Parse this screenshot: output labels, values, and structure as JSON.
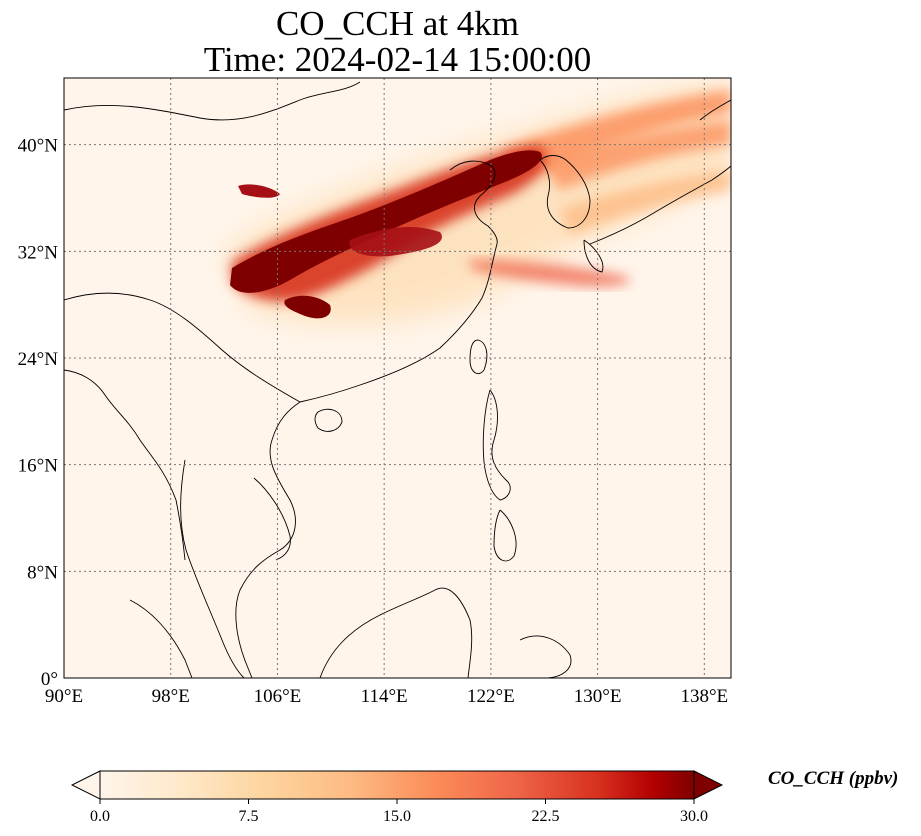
{
  "title": {
    "line1": "CO_CCH at 4km",
    "line2": "Time: 2024-02-14 15:00:00"
  },
  "map": {
    "lon_range": [
      90,
      140
    ],
    "lat_range": [
      0,
      45
    ],
    "lon_ticks": [
      {
        "value": 90,
        "label": "90°E"
      },
      {
        "value": 98,
        "label": "98°E"
      },
      {
        "value": 106,
        "label": "106°E"
      },
      {
        "value": 114,
        "label": "114°E"
      },
      {
        "value": 122,
        "label": "122°E"
      },
      {
        "value": 130,
        "label": "130°E"
      },
      {
        "value": 138,
        "label": "138°E"
      }
    ],
    "lat_ticks": [
      {
        "value": 0,
        "label": "0°"
      },
      {
        "value": 8,
        "label": "8°N"
      },
      {
        "value": 16,
        "label": "16°N"
      },
      {
        "value": 24,
        "label": "24°N"
      },
      {
        "value": 32,
        "label": "32°N"
      },
      {
        "value": 40,
        "label": "40°N"
      }
    ],
    "gridlines": true,
    "background_color": "#fff5eb",
    "coastline_color": "#000000",
    "colormap": "OrRd",
    "plume": {
      "description_values": "CO concentration field; core exceeds colorbar max",
      "max_value_ppbv": 30
    }
  },
  "colorbar": {
    "min": 0,
    "max": 30,
    "ticks": [
      "0.0",
      "7.5",
      "15.0",
      "22.5",
      "30.0"
    ],
    "label": "CO_CCH (ppbv)",
    "extend": "both",
    "colors": [
      "#fff5eb",
      "#fdd49e",
      "#fdbb84",
      "#fc8d59",
      "#ef6548",
      "#d7301f",
      "#b30000",
      "#7f0000"
    ]
  }
}
